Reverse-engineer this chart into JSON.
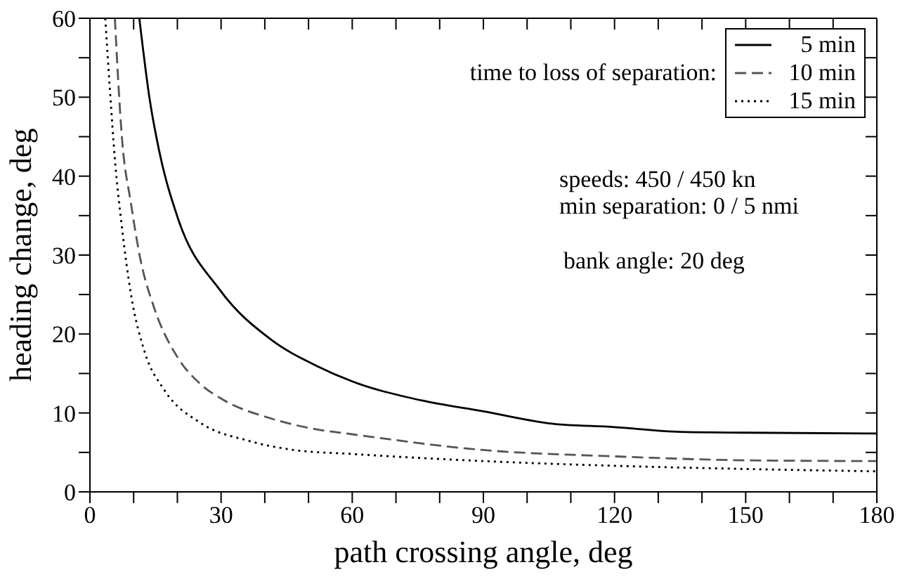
{
  "chart_data": {
    "type": "line",
    "xlabel": "path crossing angle, deg",
    "ylabel": "heading change, deg",
    "legend_title": "time to loss of separation:",
    "legend": "top right",
    "marker": "none",
    "xlim": [
      0,
      180
    ],
    "ylim": [
      0,
      60
    ],
    "xticks": [
      0,
      {
        "value": 10,
        "label": null
      },
      {
        "value": 20,
        "label": null
      },
      30,
      {
        "value": 40,
        "label": null
      },
      {
        "value": 50,
        "label": null
      },
      60,
      {
        "value": 70,
        "label": null
      },
      {
        "value": 80,
        "label": null
      },
      90,
      {
        "value": 100,
        "label": null
      },
      {
        "value": 110,
        "label": null
      },
      120,
      {
        "value": 130,
        "label": null
      },
      {
        "value": 140,
        "label": null
      },
      150,
      {
        "value": 160,
        "label": null
      },
      {
        "value": 170,
        "label": null
      },
      180
    ],
    "yticks": [
      0,
      {
        "value": 5,
        "label": null
      },
      10,
      {
        "value": 15,
        "label": null
      },
      20,
      {
        "value": 25,
        "label": null
      },
      30,
      {
        "value": 35,
        "label": null
      },
      40,
      {
        "value": 45,
        "label": null
      },
      50,
      {
        "value": 55,
        "label": null
      },
      60
    ],
    "series": [
      {
        "name": "5 min",
        "color": "#000000",
        "line_style": "solid",
        "x": [
          11.3,
          13.7,
          15.8,
          20.1,
          29.7,
          41.4,
          52.1,
          60,
          75.7,
          90,
          104.8,
          120,
          135,
          150,
          180
        ],
        "values": [
          60,
          49.6,
          43.3,
          34.7,
          25.6,
          19.3,
          15.9,
          14,
          11.6,
          10.2,
          8.7,
          8.2,
          7.6,
          7.5,
          7.4
        ]
      },
      {
        "name": "10 min",
        "color": "#555555",
        "line_style": "dashed",
        "x": [
          5.7,
          7.3,
          9.4,
          11.5,
          14.7,
          20.1,
          25.4,
          30.7,
          41.4,
          52.1,
          60,
          90,
          120,
          150,
          180
        ],
        "values": [
          60,
          45,
          36.5,
          29.6,
          23.3,
          17,
          13.6,
          11.6,
          9.3,
          7.9,
          7.3,
          5.3,
          4.5,
          4,
          3.9
        ]
      },
      {
        "name": "15 min",
        "color": "#000000",
        "line_style": "dotted",
        "x": [
          3.5,
          4.6,
          5.7,
          7.3,
          9.4,
          12.6,
          16.9,
          25.4,
          36.1,
          46.7,
          60,
          90,
          120,
          150,
          180
        ],
        "values": [
          60,
          50.7,
          42.2,
          33.6,
          25,
          17.6,
          13,
          8.7,
          6.5,
          5.3,
          4.8,
          3.9,
          3.3,
          2.9,
          2.6
        ]
      }
    ],
    "annotations": [
      "speeds: 450 / 450 kn",
      "min separation: 0 / 5 nmi",
      "bank angle: 20 deg"
    ]
  }
}
